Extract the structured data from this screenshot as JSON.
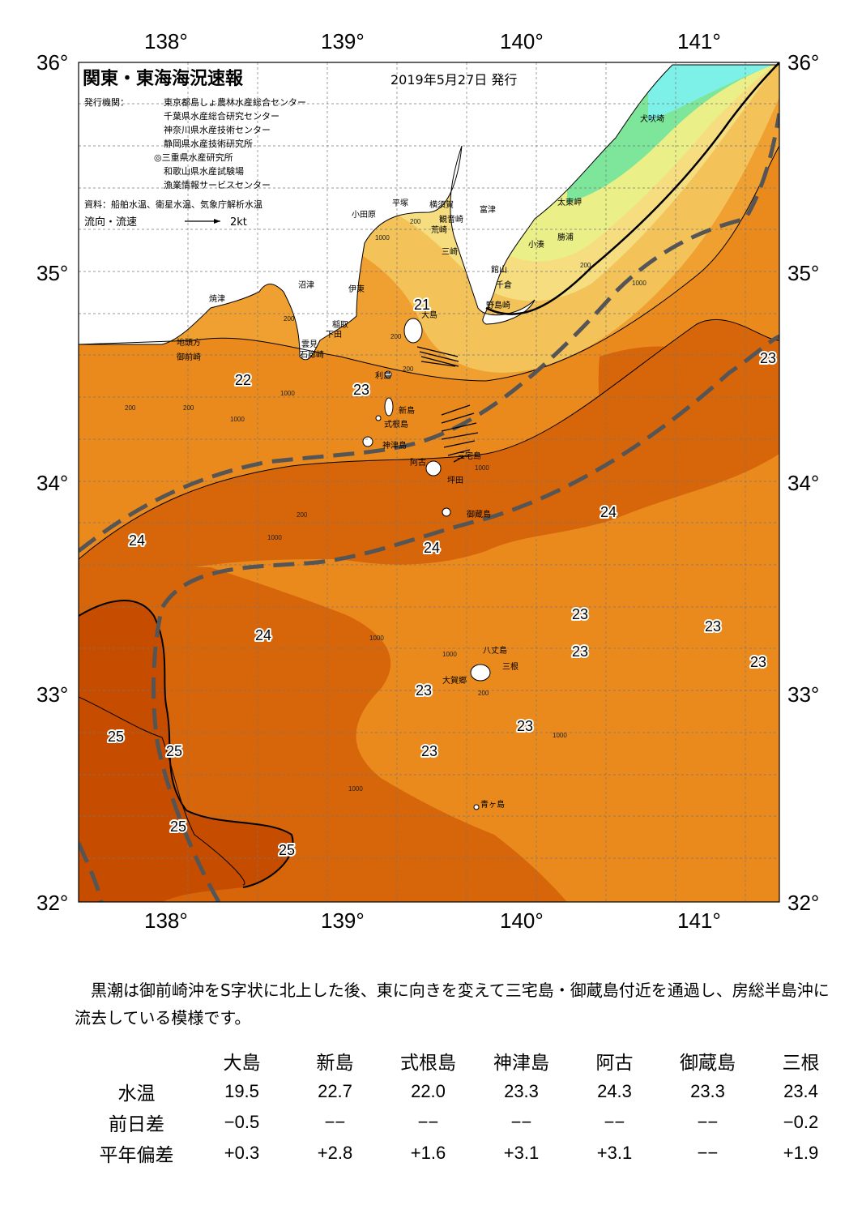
{
  "header": {
    "title": "関東・東海海況速報",
    "date": "2019年5月27日 発行",
    "issuer_label": "発行機関：",
    "issuers": [
      "東京都島しょ農林水産総合センター",
      "千葉県水産総合研究センター",
      "神奈川県水産技術センター",
      "静岡県水産技術研究所",
      "◎三重県水産研究所",
      "和歌山県水産試験場",
      "漁業情報サービスセンター"
    ],
    "source": "資料：船舶水温、衛星水温、気象庁解析水温",
    "current_legend": "流向・流速",
    "current_scale": "2kt"
  },
  "axes": {
    "lon_ticks": [
      "138°",
      "139°",
      "140°",
      "141°"
    ],
    "lat_ticks": [
      "36°",
      "35°",
      "34°",
      "33°",
      "32°"
    ]
  },
  "colors": {
    "sea_warm_25": "#c64c00",
    "sea_24": "#d7650a",
    "sea_23": "#ea8a1d",
    "sea_22": "#f0a030",
    "sea_21": "#f3c35a",
    "sea_20": "#f5dd80",
    "sea_19": "#eaef88",
    "sea_cold": "#7ee69a",
    "sea_coldest": "#7df0e8",
    "kuroshio_path": "#555555"
  },
  "places": [
    {
      "name": "犬吠埼"
    },
    {
      "name": "太東岬"
    },
    {
      "name": "勝浦"
    },
    {
      "name": "小湊"
    },
    {
      "name": "富津"
    },
    {
      "name": "観音崎"
    },
    {
      "name": "横須賀"
    },
    {
      "name": "平塚"
    },
    {
      "name": "小田原"
    },
    {
      "name": "荒崎"
    },
    {
      "name": "三崎"
    },
    {
      "name": "館山"
    },
    {
      "name": "千倉"
    },
    {
      "name": "野島崎"
    },
    {
      "name": "沼津"
    },
    {
      "name": "焼津"
    },
    {
      "name": "伊東"
    },
    {
      "name": "稲取"
    },
    {
      "name": "下田"
    },
    {
      "name": "雲見"
    },
    {
      "name": "石廊崎"
    },
    {
      "name": "地頭方"
    },
    {
      "name": "御前崎"
    },
    {
      "name": "大島"
    },
    {
      "name": "利島"
    },
    {
      "name": "新島"
    },
    {
      "name": "式根島"
    },
    {
      "name": "神津島"
    },
    {
      "name": "三宅島"
    },
    {
      "name": "阿古"
    },
    {
      "name": "坪田"
    },
    {
      "name": "御蔵島"
    },
    {
      "name": "八丈島"
    },
    {
      "name": "三根"
    },
    {
      "name": "大賀郷"
    },
    {
      "name": "青ヶ島"
    }
  ],
  "isotherm_labels": [
    "21",
    "22",
    "23",
    "23",
    "24",
    "24",
    "24",
    "23",
    "24",
    "23",
    "23",
    "23",
    "23",
    "23",
    "23",
    "25",
    "25",
    "25",
    "25"
  ],
  "depth_labels": [
    "200",
    "1000",
    "200",
    "1000",
    "200",
    "1000",
    "200",
    "200",
    "1000",
    "200",
    "1000",
    "1000",
    "200",
    "1000",
    "1000",
    "1000",
    "1000",
    "200",
    "200"
  ],
  "summary": "黒潮は御前崎沖をS字状に北上した後、東に向きを変えて三宅島・御蔵島付近を通過し、房総半島沖に流去している模様です。",
  "table": {
    "stations": [
      "大島",
      "新島",
      "式根島",
      "神津島",
      "阿古",
      "御蔵島",
      "三根"
    ],
    "rows": [
      {
        "label": "水温",
        "values": [
          "19.5",
          "22.7",
          "22.0",
          "23.3",
          "24.3",
          "23.3",
          "23.4"
        ]
      },
      {
        "label": "前日差",
        "values": [
          "−0.5",
          "−−",
          "−−",
          "−−",
          "−−",
          "−−",
          "−0.2"
        ]
      },
      {
        "label": "平年偏差",
        "values": [
          "+0.3",
          "+2.8",
          "+1.6",
          "+3.1",
          "+3.1",
          "−−",
          "+1.9"
        ]
      }
    ]
  }
}
